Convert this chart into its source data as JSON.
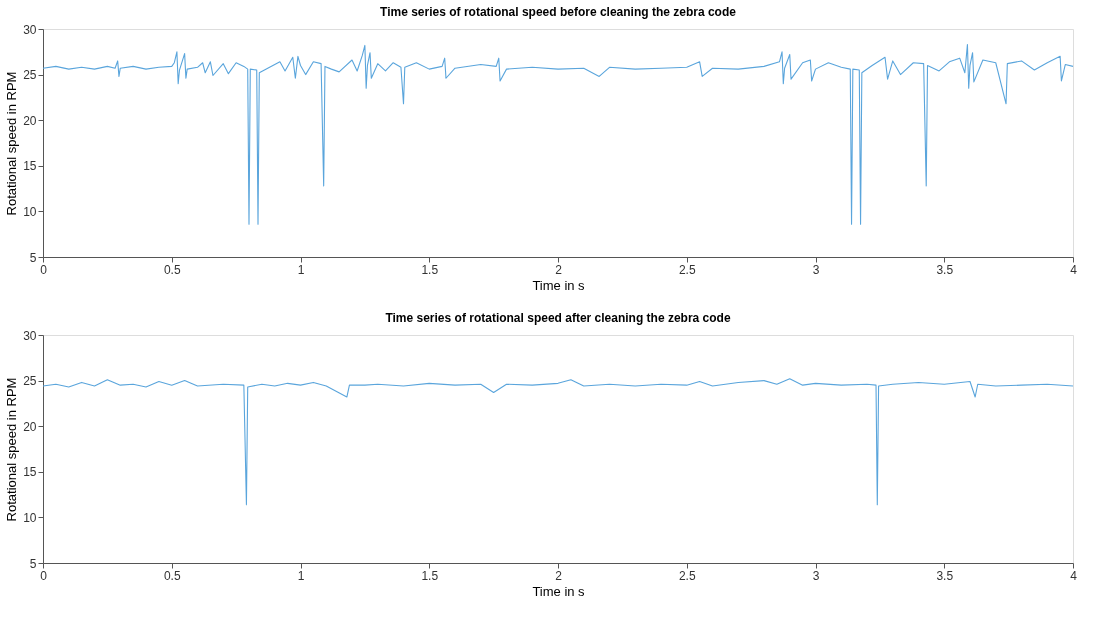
{
  "chart_data": [
    {
      "type": "line",
      "title": "Time series of rotational speed before cleaning the zebra code",
      "xlabel": "Time in s",
      "ylabel": "Rotational speed in RPM",
      "xlim": [
        0,
        4
      ],
      "ylim": [
        5,
        30
      ],
      "xticks": [
        0,
        0.5,
        1,
        1.5,
        2,
        2.5,
        3,
        3.5,
        4
      ],
      "yticks": [
        5,
        10,
        15,
        20,
        25,
        30
      ],
      "grid": false,
      "series": [
        {
          "color": "#5aa5dc",
          "x": [
            0,
            0.05,
            0.1,
            0.15,
            0.2,
            0.25,
            0.28,
            0.29,
            0.295,
            0.3,
            0.35,
            0.4,
            0.45,
            0.5,
            0.51,
            0.52,
            0.525,
            0.53,
            0.55,
            0.555,
            0.56,
            0.6,
            0.62,
            0.63,
            0.65,
            0.66,
            0.7,
            0.72,
            0.75,
            0.78,
            0.795,
            0.8,
            0.805,
            0.83,
            0.835,
            0.84,
            0.88,
            0.92,
            0.94,
            0.97,
            0.98,
            0.99,
            1.0,
            1.02,
            1.05,
            1.08,
            1.09,
            1.095,
            1.12,
            1.15,
            1.2,
            1.22,
            1.24,
            1.25,
            1.255,
            1.26,
            1.27,
            1.275,
            1.3,
            1.33,
            1.36,
            1.39,
            1.4,
            1.405,
            1.45,
            1.5,
            1.55,
            1.56,
            1.565,
            1.6,
            1.7,
            1.76,
            1.77,
            1.775,
            1.8,
            1.9,
            2.0,
            2.1,
            2.16,
            2.2,
            2.3,
            2.4,
            2.5,
            2.55,
            2.56,
            2.6,
            2.7,
            2.8,
            2.86,
            2.87,
            2.875,
            2.88,
            2.9,
            2.905,
            2.95,
            2.98,
            2.985,
            3.0,
            3.05,
            3.1,
            3.135,
            3.14,
            3.145,
            3.17,
            3.175,
            3.18,
            3.22,
            3.27,
            3.28,
            3.3,
            3.33,
            3.38,
            3.42,
            3.43,
            3.435,
            3.48,
            3.52,
            3.56,
            3.58,
            3.59,
            3.595,
            3.6,
            3.61,
            3.615,
            3.65,
            3.7,
            3.74,
            3.745,
            3.8,
            3.85,
            3.9,
            3.95,
            3.955,
            3.97,
            4.0
          ],
          "values": [
            25.7,
            25.9,
            25.6,
            25.8,
            25.6,
            25.9,
            25.7,
            26.5,
            24.8,
            25.7,
            25.9,
            25.6,
            25.8,
            25.9,
            26.3,
            27.5,
            24.0,
            25.5,
            27.3,
            24.6,
            25.6,
            25.8,
            26.3,
            25.2,
            26.4,
            24.9,
            26.2,
            25.1,
            26.3,
            25.9,
            25.6,
            8.6,
            25.6,
            25.5,
            8.6,
            25.2,
            25.8,
            26.4,
            25.4,
            26.9,
            24.6,
            27.0,
            26.0,
            25.0,
            26.4,
            26.2,
            12.8,
            25.9,
            25.6,
            25.3,
            26.6,
            25.4,
            27.1,
            28.2,
            23.5,
            26.0,
            27.4,
            24.6,
            26.2,
            25.4,
            26.3,
            25.8,
            21.8,
            25.8,
            26.3,
            25.6,
            25.9,
            26.8,
            24.6,
            25.7,
            26.1,
            25.9,
            26.8,
            24.3,
            25.6,
            25.8,
            25.6,
            25.7,
            24.8,
            25.8,
            25.6,
            25.7,
            25.8,
            26.4,
            24.8,
            25.7,
            25.6,
            25.9,
            26.4,
            27.5,
            24.0,
            25.7,
            27.2,
            24.5,
            26.3,
            26.6,
            24.3,
            25.6,
            26.3,
            25.8,
            25.6,
            8.6,
            25.6,
            25.5,
            8.6,
            25.2,
            26.0,
            26.9,
            24.5,
            26.5,
            25.0,
            26.3,
            26.2,
            12.8,
            26.0,
            25.4,
            26.4,
            26.8,
            25.2,
            28.3,
            23.5,
            26.0,
            27.4,
            24.2,
            26.6,
            26.3,
            21.8,
            26.2,
            26.5,
            25.5,
            26.3,
            27.0,
            24.3,
            26.1,
            25.9
          ]
        }
      ]
    },
    {
      "type": "line",
      "title": "Time series of rotational speed after cleaning the zebra code",
      "xlabel": "Time in s",
      "ylabel": "Rotational speed in RPM",
      "xlim": [
        0,
        4
      ],
      "ylim": [
        5,
        30
      ],
      "xticks": [
        0,
        0.5,
        1,
        1.5,
        2,
        2.5,
        3,
        3.5,
        4
      ],
      "yticks": [
        5,
        10,
        15,
        20,
        25,
        30
      ],
      "grid": false,
      "series": [
        {
          "color": "#5aa5dc",
          "x": [
            0,
            0.05,
            0.1,
            0.15,
            0.2,
            0.25,
            0.3,
            0.35,
            0.4,
            0.45,
            0.5,
            0.55,
            0.6,
            0.7,
            0.78,
            0.79,
            0.795,
            0.85,
            0.9,
            0.95,
            1.0,
            1.05,
            1.1,
            1.18,
            1.19,
            1.25,
            1.3,
            1.4,
            1.5,
            1.6,
            1.7,
            1.75,
            1.8,
            1.9,
            2.0,
            2.05,
            2.1,
            2.2,
            2.3,
            2.4,
            2.5,
            2.55,
            2.6,
            2.7,
            2.8,
            2.85,
            2.9,
            2.95,
            3.0,
            3.1,
            3.2,
            3.235,
            3.24,
            3.245,
            3.3,
            3.4,
            3.5,
            3.6,
            3.62,
            3.63,
            3.7,
            3.8,
            3.9,
            4.0
          ],
          "values": [
            24.4,
            24.6,
            24.3,
            24.8,
            24.4,
            25.1,
            24.5,
            24.6,
            24.3,
            24.9,
            24.5,
            25.0,
            24.4,
            24.6,
            24.5,
            11.4,
            24.3,
            24.6,
            24.4,
            24.7,
            24.5,
            24.8,
            24.4,
            23.2,
            24.5,
            24.5,
            24.6,
            24.4,
            24.7,
            24.5,
            24.6,
            23.7,
            24.6,
            24.5,
            24.7,
            25.1,
            24.4,
            24.6,
            24.4,
            24.6,
            24.5,
            24.9,
            24.4,
            24.8,
            25.0,
            24.6,
            25.2,
            24.5,
            24.7,
            24.5,
            24.6,
            24.5,
            11.4,
            24.4,
            24.6,
            24.8,
            24.6,
            24.9,
            23.2,
            24.6,
            24.4,
            24.5,
            24.6,
            24.4
          ]
        }
      ]
    }
  ]
}
